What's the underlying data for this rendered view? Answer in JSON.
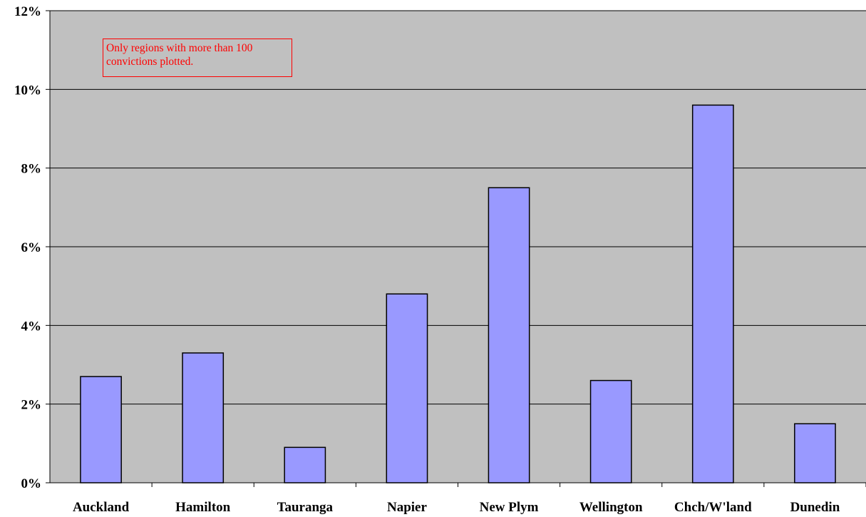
{
  "chart_data": {
    "type": "bar",
    "title": "",
    "xlabel": "",
    "ylabel": "",
    "categories": [
      "Auckland",
      "Hamilton",
      "Tauranga",
      "Napier",
      "New Plym",
      "Wellington",
      "Chch/W'land",
      "Dunedin"
    ],
    "values": [
      2.7,
      3.3,
      0.9,
      4.8,
      7.5,
      2.6,
      9.6,
      1.5
    ],
    "unit": "%",
    "ylim": [
      0,
      12
    ],
    "yticks": [
      "0%",
      "2%",
      "4%",
      "6%",
      "8%",
      "10%",
      "12%"
    ],
    "grid": true,
    "legend": "none",
    "annotation": "Only regions with more than 100 convictions plotted."
  },
  "colors": {
    "plot_background": "#c0c0c0",
    "bar_fill": "#9999ff",
    "bar_stroke": "#000000",
    "gridline": "#000000",
    "annotation_text": "#ff0000",
    "annotation_border": "#ff0000"
  }
}
